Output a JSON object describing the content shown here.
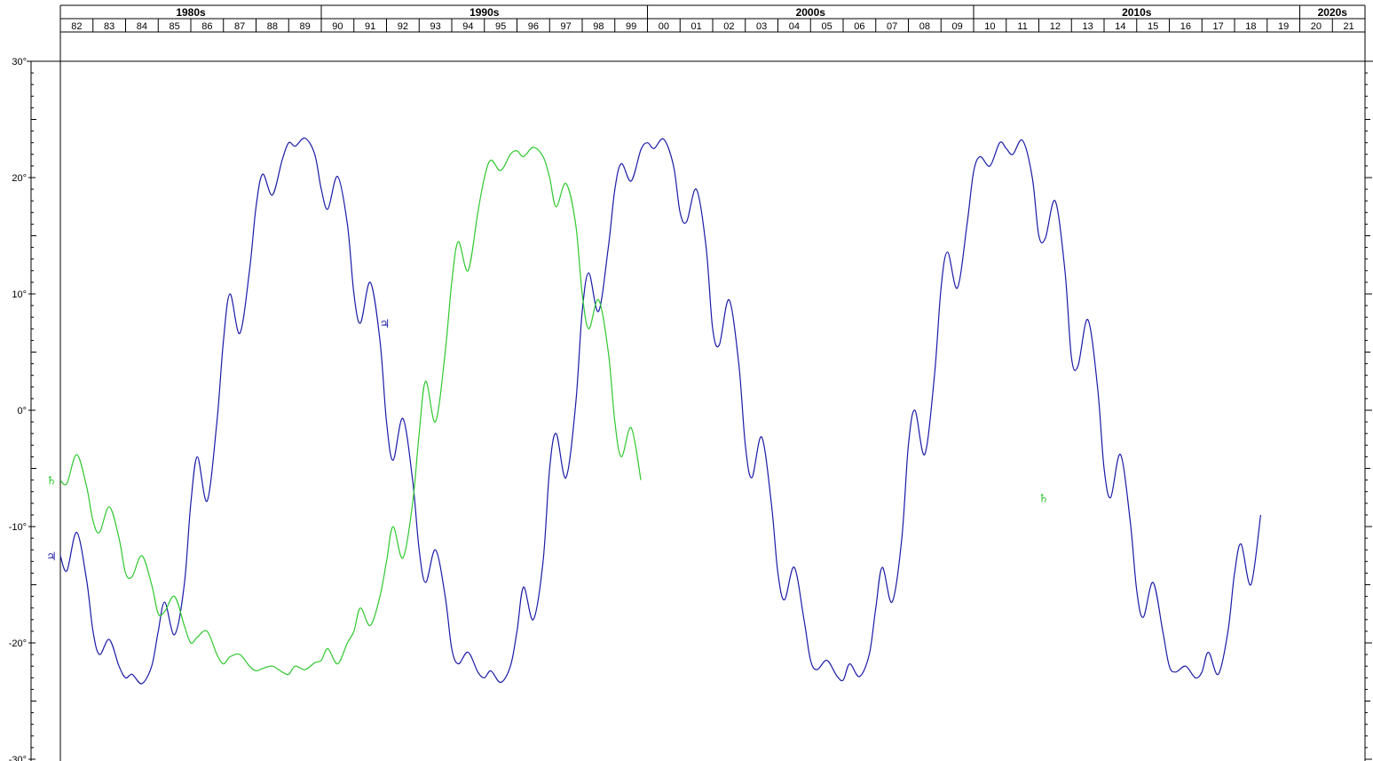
{
  "chart_data": {
    "type": "line",
    "title": "",
    "xlabel": "",
    "ylabel": "",
    "xlim": [
      1982,
      2022
    ],
    "ylim": [
      -30,
      30
    ],
    "grid": false,
    "decades": [
      {
        "label": "1980s",
        "start": 1982,
        "end": 1990
      },
      {
        "label": "1990s",
        "start": 1990,
        "end": 2000
      },
      {
        "label": "2000s",
        "start": 2000,
        "end": 2010
      },
      {
        "label": "2010s",
        "start": 2010,
        "end": 2020
      },
      {
        "label": "2020s",
        "start": 2020,
        "end": 2022
      }
    ],
    "year_labels": [
      "82",
      "83",
      "84",
      "85",
      "86",
      "87",
      "88",
      "89",
      "90",
      "91",
      "92",
      "93",
      "94",
      "95",
      "96",
      "97",
      "98",
      "99",
      "00",
      "01",
      "02",
      "03",
      "04",
      "05",
      "06",
      "07",
      "08",
      "09",
      "10",
      "11",
      "12",
      "13",
      "14",
      "15",
      "16",
      "17",
      "18",
      "19",
      "20",
      "21"
    ],
    "y_tick_labels": [
      "30°",
      "20°",
      "10°",
      "0°",
      "-10°",
      "-20°",
      "-30°"
    ],
    "y_tick_values": [
      30,
      20,
      10,
      0,
      -10,
      -20,
      -30
    ],
    "series": [
      {
        "symbol": "♃",
        "color": "#1a1aa8",
        "label_points": [
          [
            1982.0,
            -12.5
          ],
          [
            1992.0,
            7.5
          ]
        ],
        "points": [
          [
            1982.0,
            -12.5
          ],
          [
            1982.2,
            -13.8
          ],
          [
            1982.5,
            -10.5
          ],
          [
            1982.8,
            -14.5
          ],
          [
            1983.0,
            -19.0
          ],
          [
            1983.2,
            -21.0
          ],
          [
            1983.5,
            -19.7
          ],
          [
            1983.8,
            -22.0
          ],
          [
            1984.0,
            -23.0
          ],
          [
            1984.2,
            -22.7
          ],
          [
            1984.5,
            -23.5
          ],
          [
            1984.8,
            -22.0
          ],
          [
            1985.0,
            -19.0
          ],
          [
            1985.2,
            -16.5
          ],
          [
            1985.5,
            -19.3
          ],
          [
            1985.8,
            -15.0
          ],
          [
            1986.0,
            -8.0
          ],
          [
            1986.2,
            -4.0
          ],
          [
            1986.5,
            -7.8
          ],
          [
            1986.8,
            -1.0
          ],
          [
            1987.0,
            6.0
          ],
          [
            1987.2,
            10.0
          ],
          [
            1987.5,
            6.6
          ],
          [
            1987.8,
            12.0
          ],
          [
            1988.0,
            17.5
          ],
          [
            1988.2,
            20.3
          ],
          [
            1988.5,
            18.5
          ],
          [
            1988.8,
            21.5
          ],
          [
            1989.0,
            23.0
          ],
          [
            1989.2,
            22.7
          ],
          [
            1989.5,
            23.4
          ],
          [
            1989.8,
            22.0
          ],
          [
            1990.0,
            19.0
          ],
          [
            1990.2,
            17.3
          ],
          [
            1990.5,
            20.1
          ],
          [
            1990.8,
            16.0
          ],
          [
            1991.0,
            10.0
          ],
          [
            1991.2,
            7.5
          ],
          [
            1991.5,
            11.0
          ],
          [
            1991.8,
            6.0
          ],
          [
            1992.0,
            -1.0
          ],
          [
            1992.2,
            -4.3
          ],
          [
            1992.5,
            -0.7
          ],
          [
            1992.8,
            -6.0
          ],
          [
            1993.0,
            -12.0
          ],
          [
            1993.2,
            -14.8
          ],
          [
            1993.5,
            -12.0
          ],
          [
            1993.8,
            -16.0
          ],
          [
            1994.0,
            -20.5
          ],
          [
            1994.2,
            -21.8
          ],
          [
            1994.5,
            -20.8
          ],
          [
            1994.8,
            -22.5
          ],
          [
            1995.0,
            -23.0
          ],
          [
            1995.2,
            -22.4
          ],
          [
            1995.5,
            -23.4
          ],
          [
            1995.8,
            -22.0
          ],
          [
            1996.0,
            -19.0
          ],
          [
            1996.2,
            -15.2
          ],
          [
            1996.5,
            -18.0
          ],
          [
            1996.8,
            -13.0
          ],
          [
            1997.0,
            -5.0
          ],
          [
            1997.2,
            -2.0
          ],
          [
            1997.5,
            -5.8
          ],
          [
            1997.8,
            0.5
          ],
          [
            1998.0,
            8.5
          ],
          [
            1998.2,
            11.8
          ],
          [
            1998.5,
            8.5
          ],
          [
            1998.8,
            14.0
          ],
          [
            1999.0,
            19.0
          ],
          [
            1999.2,
            21.2
          ],
          [
            1999.5,
            19.7
          ],
          [
            1999.8,
            22.4
          ],
          [
            2000.0,
            23.0
          ],
          [
            2000.2,
            22.5
          ],
          [
            2000.5,
            23.3
          ],
          [
            2000.8,
            21.0
          ],
          [
            2001.0,
            17.0
          ],
          [
            2001.2,
            16.2
          ],
          [
            2001.5,
            19.0
          ],
          [
            2001.8,
            14.0
          ],
          [
            2002.0,
            7.0
          ],
          [
            2002.2,
            5.6
          ],
          [
            2002.5,
            9.5
          ],
          [
            2002.8,
            4.0
          ],
          [
            2003.0,
            -3.0
          ],
          [
            2003.2,
            -5.8
          ],
          [
            2003.5,
            -2.3
          ],
          [
            2003.8,
            -8.0
          ],
          [
            2004.0,
            -14.0
          ],
          [
            2004.2,
            -16.3
          ],
          [
            2004.5,
            -13.5
          ],
          [
            2004.8,
            -18.0
          ],
          [
            2005.0,
            -21.5
          ],
          [
            2005.2,
            -22.3
          ],
          [
            2005.5,
            -21.5
          ],
          [
            2005.8,
            -22.8
          ],
          [
            2006.0,
            -23.2
          ],
          [
            2006.2,
            -21.8
          ],
          [
            2006.5,
            -22.9
          ],
          [
            2006.8,
            -21.0
          ],
          [
            2007.0,
            -17.0
          ],
          [
            2007.2,
            -13.5
          ],
          [
            2007.5,
            -16.5
          ],
          [
            2007.8,
            -11.0
          ],
          [
            2008.0,
            -3.0
          ],
          [
            2008.2,
            0.0
          ],
          [
            2008.5,
            -3.8
          ],
          [
            2008.8,
            3.0
          ],
          [
            2009.0,
            10.5
          ],
          [
            2009.2,
            13.6
          ],
          [
            2009.5,
            10.5
          ],
          [
            2009.8,
            16.0
          ],
          [
            2010.0,
            20.5
          ],
          [
            2010.2,
            21.8
          ],
          [
            2010.5,
            21.0
          ],
          [
            2010.8,
            23.0
          ],
          [
            2011.0,
            22.5
          ],
          [
            2011.2,
            22.0
          ],
          [
            2011.5,
            23.2
          ],
          [
            2011.8,
            20.0
          ],
          [
            2012.0,
            15.0
          ],
          [
            2012.2,
            14.8
          ],
          [
            2012.5,
            18.0
          ],
          [
            2012.8,
            12.0
          ],
          [
            2013.0,
            4.5
          ],
          [
            2013.2,
            3.8
          ],
          [
            2013.5,
            7.8
          ],
          [
            2013.8,
            2.0
          ],
          [
            2014.0,
            -5.0
          ],
          [
            2014.2,
            -7.5
          ],
          [
            2014.5,
            -3.8
          ],
          [
            2014.8,
            -9.5
          ],
          [
            2015.0,
            -15.5
          ],
          [
            2015.2,
            -17.8
          ],
          [
            2015.5,
            -14.8
          ],
          [
            2015.8,
            -19.0
          ],
          [
            2016.0,
            -22.0
          ],
          [
            2016.2,
            -22.5
          ],
          [
            2016.5,
            -22.0
          ],
          [
            2016.8,
            -23.0
          ],
          [
            2017.0,
            -22.5
          ],
          [
            2017.2,
            -20.8
          ],
          [
            2017.5,
            -22.7
          ],
          [
            2017.8,
            -19.0
          ],
          [
            2018.0,
            -14.0
          ],
          [
            2018.2,
            -11.5
          ],
          [
            2018.5,
            -15.0
          ],
          [
            2018.8,
            -9.0
          ]
        ]
      },
      {
        "symbol": "♄",
        "color": "#2ec82e",
        "label_points": [
          [
            1982.0,
            -6.0
          ],
          [
            2012.2,
            -7.5
          ]
        ],
        "points": [
          [
            1982.0,
            -6.0
          ],
          [
            1982.2,
            -6.3
          ],
          [
            1982.5,
            -3.8
          ],
          [
            1982.8,
            -6.5
          ],
          [
            1983.0,
            -9.5
          ],
          [
            1983.2,
            -10.5
          ],
          [
            1983.5,
            -8.3
          ],
          [
            1983.8,
            -11.0
          ],
          [
            1984.0,
            -14.0
          ],
          [
            1984.2,
            -14.3
          ],
          [
            1984.5,
            -12.5
          ],
          [
            1984.8,
            -15.0
          ],
          [
            1985.0,
            -17.5
          ],
          [
            1985.2,
            -17.3
          ],
          [
            1985.5,
            -16.0
          ],
          [
            1985.8,
            -18.5
          ],
          [
            1986.0,
            -20.0
          ],
          [
            1986.2,
            -19.5
          ],
          [
            1986.5,
            -19.0
          ],
          [
            1986.8,
            -21.0
          ],
          [
            1987.0,
            -21.8
          ],
          [
            1987.2,
            -21.2
          ],
          [
            1987.5,
            -21.0
          ],
          [
            1987.8,
            -22.0
          ],
          [
            1988.0,
            -22.4
          ],
          [
            1988.2,
            -22.2
          ],
          [
            1988.5,
            -22.0
          ],
          [
            1988.8,
            -22.5
          ],
          [
            1989.0,
            -22.7
          ],
          [
            1989.2,
            -22.0
          ],
          [
            1989.5,
            -22.3
          ],
          [
            1989.8,
            -21.7
          ],
          [
            1990.0,
            -21.5
          ],
          [
            1990.2,
            -20.5
          ],
          [
            1990.5,
            -21.8
          ],
          [
            1990.8,
            -20.0
          ],
          [
            1991.0,
            -19.0
          ],
          [
            1991.2,
            -17.0
          ],
          [
            1991.5,
            -18.5
          ],
          [
            1991.8,
            -16.0
          ],
          [
            1992.0,
            -13.0
          ],
          [
            1992.2,
            -10.0
          ],
          [
            1992.5,
            -12.7
          ],
          [
            1992.8,
            -8.0
          ],
          [
            1993.0,
            -2.0
          ],
          [
            1993.2,
            2.5
          ],
          [
            1993.5,
            -1.0
          ],
          [
            1993.8,
            5.0
          ],
          [
            1994.0,
            11.0
          ],
          [
            1994.2,
            14.5
          ],
          [
            1994.5,
            12.0
          ],
          [
            1994.8,
            17.0
          ],
          [
            1995.0,
            20.0
          ],
          [
            1995.2,
            21.5
          ],
          [
            1995.5,
            20.6
          ],
          [
            1995.8,
            22.0
          ],
          [
            1996.0,
            22.3
          ],
          [
            1996.2,
            21.8
          ],
          [
            1996.5,
            22.6
          ],
          [
            1996.8,
            21.8
          ],
          [
            1997.0,
            20.0
          ],
          [
            1997.2,
            17.5
          ],
          [
            1997.5,
            19.5
          ],
          [
            1997.8,
            16.0
          ],
          [
            1998.0,
            10.0
          ],
          [
            1998.2,
            7.0
          ],
          [
            1998.5,
            9.5
          ],
          [
            1998.8,
            5.0
          ],
          [
            1999.0,
            -1.0
          ],
          [
            1999.2,
            -4.0
          ],
          [
            1999.5,
            -1.5
          ],
          [
            1999.8,
            -6.0
          ]
        ]
      }
    ]
  }
}
